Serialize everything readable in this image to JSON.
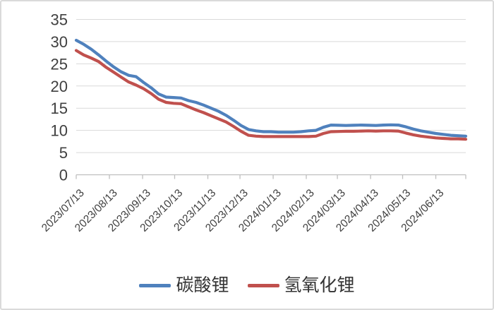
{
  "chart_data": {
    "type": "line",
    "title": "",
    "xlabel": "",
    "ylabel": "",
    "grid": "horizontal",
    "legend_position": "bottom",
    "y_axis": {
      "min": 0,
      "max": 35,
      "ticks": [
        0,
        5,
        10,
        15,
        20,
        25,
        30,
        35
      ]
    },
    "x_axis": {
      "tick_labels": [
        "2023/07/13",
        "2023/08/13",
        "2023/09/13",
        "2023/10/13",
        "2023/11/13",
        "2023/12/13",
        "2024/01/13",
        "2024/02/13",
        "2024/03/13",
        "2024/04/13",
        "2024/05/13",
        "2024/06/13"
      ],
      "tick_week_positions": [
        0,
        4.43,
        8.86,
        13.14,
        17.57,
        21.86,
        26.29,
        30.71,
        34.86,
        39.29,
        43.57,
        48.0
      ],
      "total_weeks": 52
    },
    "series": [
      {
        "name": "碳酸锂",
        "color": "#4F81BD",
        "weekly_values": [
          30.3,
          29.4,
          28.3,
          27.0,
          25.6,
          24.3,
          23.2,
          22.4,
          22.1,
          20.8,
          19.6,
          18.2,
          17.5,
          17.4,
          17.3,
          16.7,
          16.3,
          15.7,
          15.0,
          14.3,
          13.4,
          12.3,
          11.1,
          10.2,
          9.9,
          9.7,
          9.7,
          9.6,
          9.6,
          9.6,
          9.7,
          9.9,
          10.0,
          10.7,
          11.2,
          11.15,
          11.1,
          11.15,
          11.2,
          11.15,
          11.1,
          11.2,
          11.25,
          11.2,
          10.8,
          10.3,
          9.9,
          9.6,
          9.3,
          9.1,
          8.9,
          8.8,
          8.7
        ]
      },
      {
        "name": "氢氧化锂",
        "color": "#C0504D",
        "weekly_values": [
          28.0,
          27.0,
          26.3,
          25.5,
          24.2,
          23.1,
          22.0,
          20.9,
          20.2,
          19.4,
          18.3,
          17.0,
          16.3,
          16.1,
          16.0,
          15.3,
          14.6,
          14.0,
          13.3,
          12.6,
          11.9,
          10.9,
          9.8,
          8.9,
          8.7,
          8.6,
          8.6,
          8.6,
          8.6,
          8.6,
          8.6,
          8.6,
          8.7,
          9.3,
          9.7,
          9.75,
          9.8,
          9.8,
          9.85,
          9.9,
          9.85,
          9.9,
          9.9,
          9.85,
          9.4,
          9.0,
          8.7,
          8.5,
          8.3,
          8.2,
          8.1,
          8.1,
          8.0
        ]
      }
    ]
  },
  "colors": {
    "gridline": "#D9D9D9",
    "axis_line": "#BFBFBF",
    "tick_text": "#404040",
    "frame_border": "#DADADA",
    "series_blue": "#4F81BD",
    "series_red": "#C0504D"
  }
}
